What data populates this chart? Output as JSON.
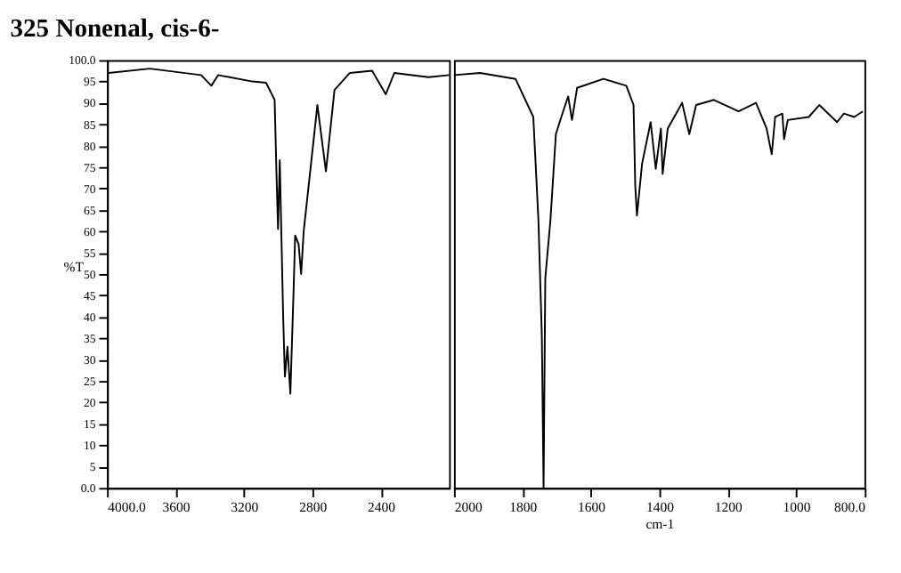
{
  "chart_data": [
    {
      "type": "line",
      "title": "325     Nonenal, cis-6-",
      "ylabel": "%T",
      "xlim": [
        4000,
        2000
      ],
      "ylim": [
        0,
        100
      ],
      "xticks": [
        {
          "value": 4000,
          "label": "4000.0"
        },
        3600,
        3200,
        2800,
        2400
      ],
      "yticks": [
        {
          "value": 0,
          "label": "0.0"
        },
        5,
        10,
        15,
        20,
        25,
        30,
        35,
        40,
        45,
        50,
        55,
        60,
        65,
        70,
        75,
        80,
        85,
        90,
        95,
        {
          "value": 100,
          "label": "100.0"
        }
      ],
      "grid": false,
      "legend": false,
      "marker": "none",
      "line_style": "solid",
      "series": [
        {
          "color": "#000000",
          "x": [
            3990,
            3750,
            3450,
            3390,
            3350,
            3150,
            3070,
            3020,
            3010,
            3000,
            2990,
            2970,
            2960,
            2945,
            2928,
            2910,
            2900,
            2880,
            2865,
            2850,
            2770,
            2720,
            2670,
            2580,
            2450,
            2370,
            2320,
            2120,
            2000
          ],
          "values": [
            97,
            98,
            96.5,
            94,
            96.5,
            95,
            94.7,
            90.7,
            74.6,
            60.5,
            76.6,
            40,
            26,
            33,
            22,
            45,
            59,
            57,
            50,
            60,
            89.5,
            74,
            93,
            97,
            97.5,
            92,
            97,
            96,
            96.5
          ]
        }
      ]
    },
    {
      "type": "line",
      "xlabel": "cm-1",
      "xlim": [
        2000,
        800
      ],
      "ylim": [
        0,
        100
      ],
      "tick_labels": "x",
      "xticks": [
        2000,
        1800,
        1600,
        1400,
        1200,
        1000,
        {
          "value": 800,
          "label": "800.0"
        }
      ],
      "grid": false,
      "legend": false,
      "marker": "none",
      "line_style": "solid",
      "series": [
        {
          "color": "#000000",
          "x": [
            2000,
            1923,
            1820,
            1768,
            1753,
            1743,
            1738,
            1733,
            1718,
            1702,
            1681,
            1666,
            1655,
            1640,
            1563,
            1496,
            1475,
            1470,
            1465,
            1450,
            1425,
            1410,
            1395,
            1390,
            1375,
            1333,
            1312,
            1292,
            1240,
            1168,
            1117,
            1086,
            1071,
            1061,
            1040,
            1035,
            1024,
            963,
            932,
            880,
            860,
            830,
            805
          ],
          "values": [
            96.5,
            97,
            95.6,
            86.7,
            62.5,
            35.5,
            0,
            49,
            62.5,
            82.7,
            88,
            91.5,
            86,
            93.5,
            95.6,
            94,
            89.5,
            70.6,
            63.7,
            75.8,
            85.5,
            74.6,
            84,
            73.4,
            84,
            90,
            82.7,
            89.5,
            90.7,
            88,
            90,
            84,
            78,
            86.7,
            87.5,
            81.5,
            86,
            86.7,
            89.5,
            85.5,
            87.5,
            86.7,
            88
          ]
        }
      ]
    }
  ]
}
